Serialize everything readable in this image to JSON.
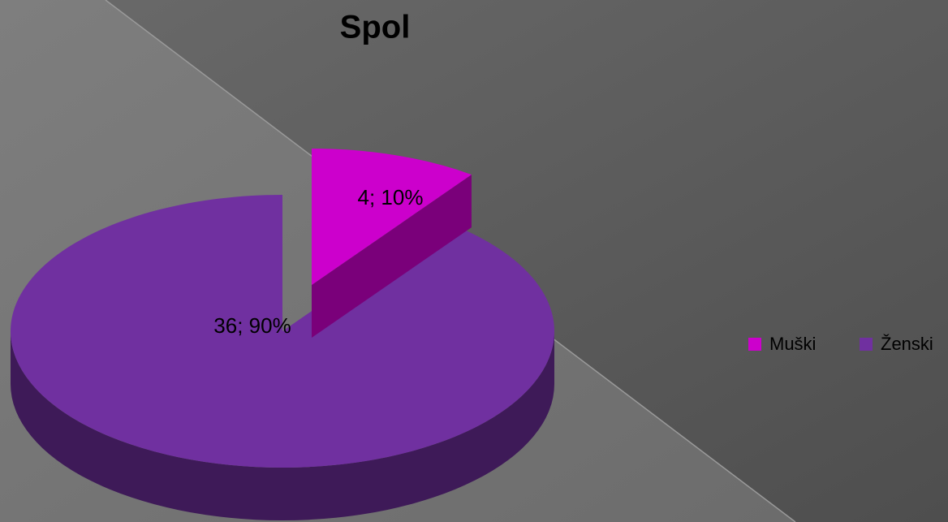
{
  "chart_data": {
    "type": "pie",
    "title": "Spol",
    "categories": [
      "Muški",
      "Ženski"
    ],
    "values": [
      4,
      36
    ],
    "value_labels": [
      "4; 10%",
      "36; 90%"
    ],
    "colors": [
      "#cc00cc",
      "#7030a0"
    ],
    "legend": "right"
  }
}
